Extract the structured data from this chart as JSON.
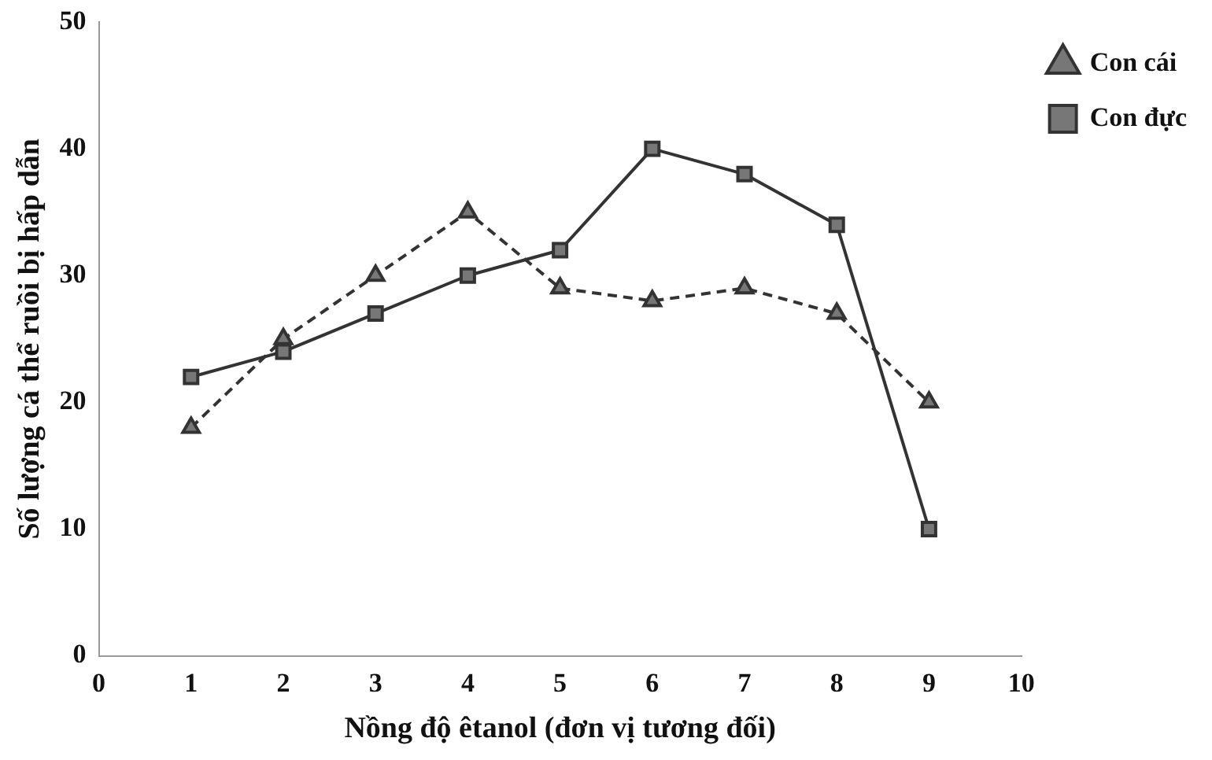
{
  "chart_data": {
    "type": "line",
    "xlabel": "Nồng độ êtanol (đơn vị tương đối)",
    "ylabel": "Số lượng cá thể ruồi bị hấp dẫn",
    "x": [
      1,
      2,
      3,
      4,
      5,
      6,
      7,
      8,
      9
    ],
    "series": [
      {
        "name": "Con cái",
        "color": "#333333",
        "marker": "triangle",
        "line_style": "dashed",
        "values": [
          18,
          25,
          30,
          35,
          29,
          28,
          29,
          27,
          20
        ]
      },
      {
        "name": "Con đực",
        "color": "#333333",
        "marker": "square",
        "line_style": "solid",
        "values": [
          22,
          24,
          27,
          30,
          32,
          40,
          38,
          34,
          10
        ]
      }
    ],
    "xlim": [
      0,
      10
    ],
    "xticks": [
      0,
      1,
      2,
      3,
      4,
      5,
      6,
      7,
      8,
      9,
      10
    ],
    "ylim": [
      0,
      50
    ],
    "yticks": [
      0,
      10,
      20,
      30,
      40,
      50
    ],
    "grid": false,
    "legend": "top right"
  }
}
